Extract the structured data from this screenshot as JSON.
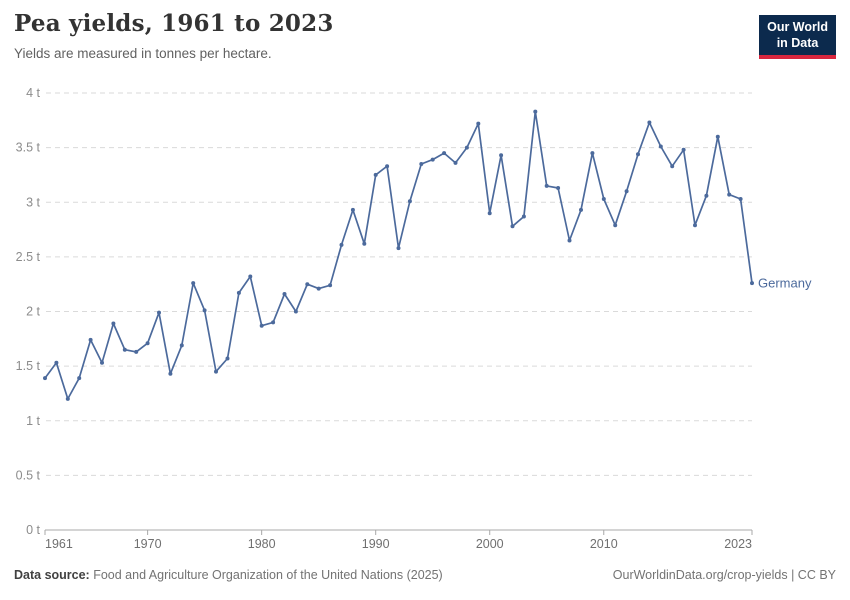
{
  "header": {
    "title": "Pea yields, 1961 to 2023",
    "subtitle": "Yields are measured in tonnes per hectare."
  },
  "logo": {
    "line1": "Our World",
    "line2": "in Data",
    "bg_color": "#0c2a4d",
    "accent_color": "#d8263e"
  },
  "footer": {
    "source_label": "Data source:",
    "source_text": " Food and Agriculture Organization of the United Nations (2025)",
    "right_text": "OurWorldinData.org/crop-yields | CC BY"
  },
  "chart_data": {
    "type": "line",
    "title": "Pea yields, 1961 to 2023",
    "subtitle": "Yields are measured in tonnes per hectare.",
    "unit": "tonnes per hectare",
    "grid": "dashed-horizontal",
    "legend": "end-of-line-label",
    "xlim": [
      1961,
      2023
    ],
    "ylim": [
      0,
      4
    ],
    "xticks": [
      1961,
      1970,
      1980,
      1990,
      2000,
      2010,
      2023
    ],
    "yticks": [
      0,
      0.5,
      1,
      1.5,
      2,
      2.5,
      3,
      3.5,
      4
    ],
    "ytick_labels": [
      "0 t",
      "0.5 t",
      "1 t",
      "1.5 t",
      "2 t",
      "2.5 t",
      "3 t",
      "3.5 t",
      "4 t"
    ],
    "x": [
      1961,
      1962,
      1963,
      1964,
      1965,
      1966,
      1967,
      1968,
      1969,
      1970,
      1971,
      1972,
      1973,
      1974,
      1975,
      1976,
      1977,
      1978,
      1979,
      1980,
      1981,
      1982,
      1983,
      1984,
      1985,
      1986,
      1987,
      1988,
      1989,
      1990,
      1991,
      1992,
      1993,
      1994,
      1995,
      1996,
      1997,
      1998,
      1999,
      2000,
      2001,
      2002,
      2003,
      2004,
      2005,
      2006,
      2007,
      2008,
      2009,
      2010,
      2011,
      2012,
      2013,
      2014,
      2015,
      2016,
      2017,
      2018,
      2019,
      2020,
      2021,
      2022,
      2023
    ],
    "series": [
      {
        "name": "Germany",
        "color": "#4c6a9c",
        "values": [
          1.39,
          1.53,
          1.2,
          1.39,
          1.74,
          1.53,
          1.89,
          1.65,
          1.63,
          1.71,
          1.99,
          1.43,
          1.69,
          2.26,
          2.01,
          1.45,
          1.57,
          2.17,
          2.32,
          1.87,
          1.9,
          2.16,
          2.0,
          2.25,
          2.21,
          2.24,
          2.61,
          2.93,
          2.62,
          3.25,
          3.33,
          2.58,
          3.01,
          3.35,
          3.39,
          3.45,
          3.36,
          3.5,
          3.72,
          2.9,
          3.43,
          2.78,
          2.87,
          3.83,
          3.15,
          3.13,
          2.65,
          2.93,
          3.45,
          3.03,
          2.79,
          3.1,
          3.44,
          3.73,
          3.51,
          3.33,
          3.48,
          2.79,
          3.06,
          3.6,
          3.07,
          3.03,
          2.26
        ]
      }
    ],
    "axis_colors": {
      "gridline": "#dadada",
      "axis_line": "#a8a8a8",
      "ytick_label": "#8c8c8c",
      "xtick_label": "#707070"
    }
  }
}
